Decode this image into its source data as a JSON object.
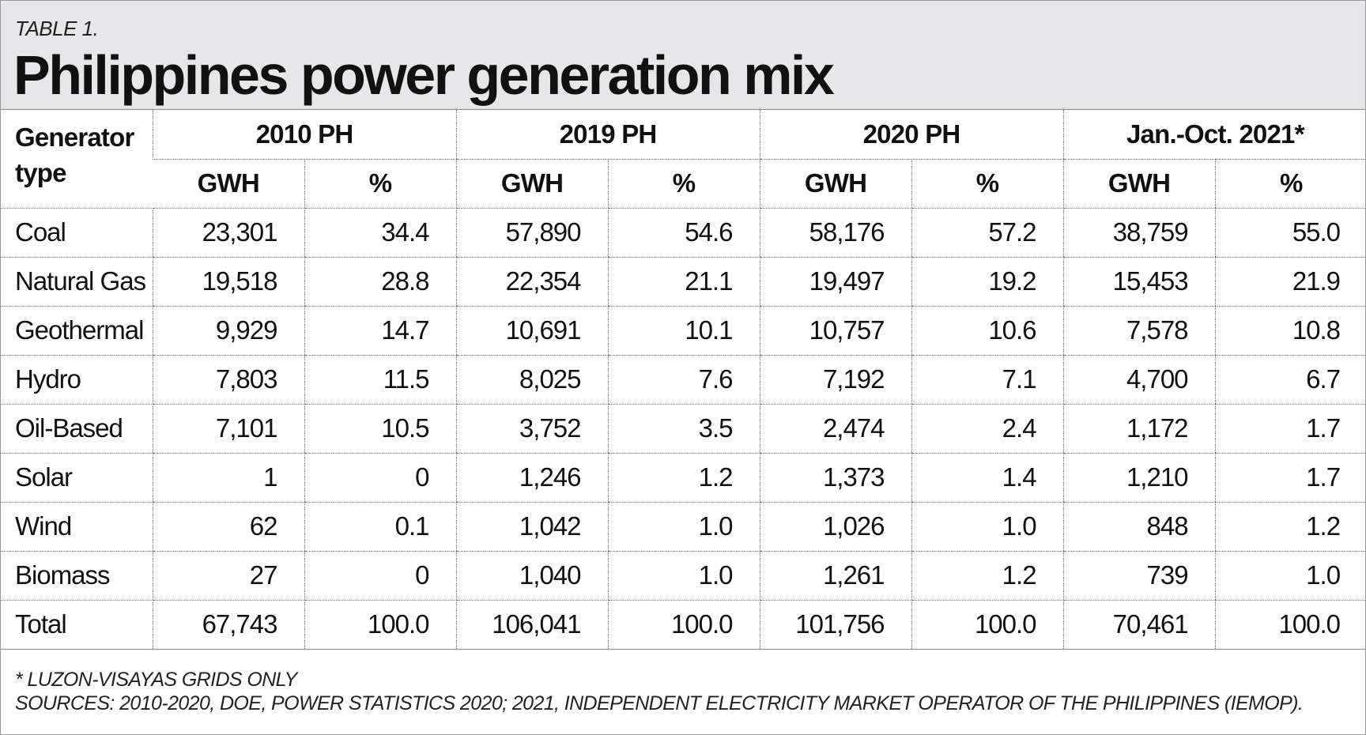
{
  "table_label": "TABLE 1.",
  "title": "Philippines power generation mix",
  "first_col_header_line1": "Generator",
  "first_col_header_line2": "type",
  "periods": [
    "2010 PH",
    "2019 PH",
    "2020 PH",
    "Jan.-Oct. 2021*"
  ],
  "sub_headers": [
    "GWH",
    "%"
  ],
  "rows": [
    {
      "type": "Coal",
      "values": [
        "23,301",
        "34.4",
        "57,890",
        "54.6",
        "58,176",
        "57.2",
        "38,759",
        "55.0"
      ]
    },
    {
      "type": "Natural Gas",
      "values": [
        "19,518",
        "28.8",
        "22,354",
        "21.1",
        "19,497",
        "19.2",
        "15,453",
        "21.9"
      ]
    },
    {
      "type": "Geothermal",
      "values": [
        "9,929",
        "14.7",
        "10,691",
        "10.1",
        "10,757",
        "10.6",
        "7,578",
        "10.8"
      ]
    },
    {
      "type": "Hydro",
      "values": [
        "7,803",
        "11.5",
        "8,025",
        "7.6",
        "7,192",
        "7.1",
        "4,700",
        "6.7"
      ]
    },
    {
      "type": "Oil-Based",
      "values": [
        "7,101",
        "10.5",
        "3,752",
        "3.5",
        "2,474",
        "2.4",
        "1,172",
        "1.7"
      ]
    },
    {
      "type": "Solar",
      "values": [
        "1",
        "0",
        "1,246",
        "1.2",
        "1,373",
        "1.4",
        "1,210",
        "1.7"
      ]
    },
    {
      "type": "Wind",
      "values": [
        "62",
        "0.1",
        "1,042",
        "1.0",
        "1,026",
        "1.0",
        "848",
        "1.2"
      ]
    },
    {
      "type": "Biomass",
      "values": [
        "27",
        "0",
        "1,040",
        "1.0",
        "1,261",
        "1.2",
        "739",
        "1.0"
      ]
    },
    {
      "type": "Total",
      "values": [
        "67,743",
        "100.0",
        "106,041",
        "100.0",
        "101,756",
        "100.0",
        "70,461",
        "100.0"
      ]
    }
  ],
  "footnote_line1": "* LUZON-VISAYAS GRIDS ONLY",
  "footnote_line2": "SOURCES: 2010-2020, DOE, POWER STATISTICS 2020; 2021, INDEPENDENT ELECTRICITY MARKET OPERATOR OF THE PHILIPPINES (IEMOP)."
}
